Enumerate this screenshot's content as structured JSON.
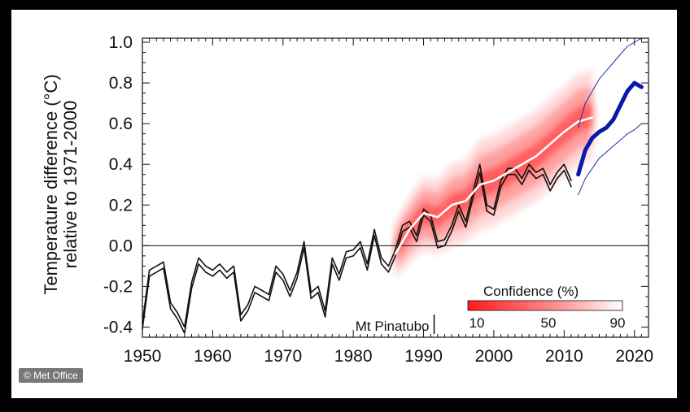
{
  "credit": "© Met Office",
  "colors": {
    "forecast_band": "#ff2a2a",
    "observed": "#111111",
    "hindcast_mean": "#ffffff",
    "decadal_forecast": "#0a1aa8"
  },
  "chart_data": {
    "type": "line",
    "title": "",
    "xlabel": "",
    "ylabel_line1": "Temperature difference (°C)",
    "ylabel_line2": "relative to 1971-2000",
    "xlim": [
      1950,
      2022
    ],
    "ylim": [
      -0.45,
      1.02
    ],
    "x_ticks": [
      1950,
      1960,
      1970,
      1980,
      1990,
      2000,
      2010,
      2020
    ],
    "x_tick_labels": [
      "1950",
      "1960",
      "1970",
      "1980",
      "1990",
      "2000",
      "2010",
      "2020"
    ],
    "y_ticks": [
      -0.4,
      -0.2,
      0.0,
      0.2,
      0.4,
      0.6,
      0.8,
      1.0
    ],
    "y_tick_labels": [
      "-0.4",
      "-0.2",
      "0.0",
      "0.2",
      "0.4",
      "0.6",
      "0.8",
      "1.0"
    ],
    "zero_line": 0.0,
    "annotation": {
      "text": "Mt Pinatubo",
      "x": 1991.5
    },
    "legend": {
      "title": "Confidence (%)",
      "labels": [
        "10",
        "50",
        "90"
      ],
      "position": "bottom-right"
    },
    "series": [
      {
        "name": "Observations 1",
        "color": "#111111",
        "points": [
          [
            1950,
            -0.38
          ],
          [
            1951,
            -0.12
          ],
          [
            1952,
            -0.1
          ],
          [
            1953,
            -0.08
          ],
          [
            1954,
            -0.28
          ],
          [
            1955,
            -0.33
          ],
          [
            1956,
            -0.4
          ],
          [
            1957,
            -0.18
          ],
          [
            1958,
            -0.06
          ],
          [
            1959,
            -0.1
          ],
          [
            1960,
            -0.12
          ],
          [
            1961,
            -0.09
          ],
          [
            1962,
            -0.13
          ],
          [
            1963,
            -0.1
          ],
          [
            1964,
            -0.34
          ],
          [
            1965,
            -0.29
          ],
          [
            1966,
            -0.2
          ],
          [
            1967,
            -0.22
          ],
          [
            1968,
            -0.24
          ],
          [
            1969,
            -0.1
          ],
          [
            1970,
            -0.14
          ],
          [
            1971,
            -0.22
          ],
          [
            1972,
            -0.13
          ],
          [
            1973,
            0.02
          ],
          [
            1974,
            -0.23
          ],
          [
            1975,
            -0.2
          ],
          [
            1976,
            -0.32
          ],
          [
            1977,
            -0.06
          ],
          [
            1978,
            -0.14
          ],
          [
            1979,
            -0.03
          ],
          [
            1980,
            -0.02
          ],
          [
            1981,
            0.02
          ],
          [
            1982,
            -0.09
          ],
          [
            1983,
            0.08
          ],
          [
            1984,
            -0.06
          ],
          [
            1985,
            -0.1
          ],
          [
            1986,
            -0.02
          ],
          [
            1987,
            0.1
          ],
          [
            1988,
            0.12
          ],
          [
            1989,
            0.05
          ],
          [
            1990,
            0.18
          ],
          [
            1991,
            0.15
          ],
          [
            1992,
            0.02
          ],
          [
            1993,
            0.03
          ],
          [
            1994,
            0.1
          ],
          [
            1995,
            0.2
          ],
          [
            1996,
            0.12
          ],
          [
            1997,
            0.26
          ],
          [
            1998,
            0.4
          ],
          [
            1999,
            0.2
          ],
          [
            2000,
            0.18
          ],
          [
            2001,
            0.32
          ],
          [
            2002,
            0.38
          ],
          [
            2003,
            0.38
          ],
          [
            2004,
            0.33
          ],
          [
            2005,
            0.4
          ],
          [
            2006,
            0.36
          ],
          [
            2007,
            0.38
          ],
          [
            2008,
            0.3
          ],
          [
            2009,
            0.36
          ],
          [
            2010,
            0.4
          ],
          [
            2011,
            0.32
          ]
        ]
      },
      {
        "name": "Observations 2",
        "color": "#111111",
        "points": [
          [
            1950,
            -0.41
          ],
          [
            1951,
            -0.15
          ],
          [
            1952,
            -0.13
          ],
          [
            1953,
            -0.11
          ],
          [
            1954,
            -0.31
          ],
          [
            1955,
            -0.36
          ],
          [
            1956,
            -0.43
          ],
          [
            1957,
            -0.21
          ],
          [
            1958,
            -0.09
          ],
          [
            1959,
            -0.13
          ],
          [
            1960,
            -0.15
          ],
          [
            1961,
            -0.12
          ],
          [
            1962,
            -0.16
          ],
          [
            1963,
            -0.13
          ],
          [
            1964,
            -0.37
          ],
          [
            1965,
            -0.32
          ],
          [
            1966,
            -0.23
          ],
          [
            1967,
            -0.25
          ],
          [
            1968,
            -0.27
          ],
          [
            1969,
            -0.13
          ],
          [
            1970,
            -0.17
          ],
          [
            1971,
            -0.25
          ],
          [
            1972,
            -0.16
          ],
          [
            1973,
            -0.01
          ],
          [
            1974,
            -0.26
          ],
          [
            1975,
            -0.23
          ],
          [
            1976,
            -0.35
          ],
          [
            1977,
            -0.09
          ],
          [
            1978,
            -0.17
          ],
          [
            1979,
            -0.06
          ],
          [
            1980,
            -0.05
          ],
          [
            1981,
            -0.01
          ],
          [
            1982,
            -0.12
          ],
          [
            1983,
            0.05
          ],
          [
            1984,
            -0.09
          ],
          [
            1985,
            -0.13
          ],
          [
            1986,
            -0.05
          ],
          [
            1987,
            0.07
          ],
          [
            1988,
            0.09
          ],
          [
            1989,
            0.02
          ],
          [
            1990,
            0.15
          ],
          [
            1991,
            0.12
          ],
          [
            1992,
            -0.01
          ],
          [
            1993,
            0.0
          ],
          [
            1994,
            0.07
          ],
          [
            1995,
            0.17
          ],
          [
            1996,
            0.09
          ],
          [
            1997,
            0.23
          ],
          [
            1998,
            0.36
          ],
          [
            1999,
            0.17
          ],
          [
            2000,
            0.15
          ],
          [
            2001,
            0.29
          ],
          [
            2002,
            0.35
          ],
          [
            2003,
            0.35
          ],
          [
            2004,
            0.3
          ],
          [
            2005,
            0.37
          ],
          [
            2006,
            0.33
          ],
          [
            2007,
            0.35
          ],
          [
            2008,
            0.27
          ],
          [
            2009,
            0.33
          ],
          [
            2010,
            0.37
          ],
          [
            2011,
            0.29
          ]
        ]
      },
      {
        "name": "Hindcast central estimate",
        "color": "#ffffff",
        "points": [
          [
            1986,
            -0.04
          ],
          [
            1988,
            0.08
          ],
          [
            1990,
            0.16
          ],
          [
            1992,
            0.14
          ],
          [
            1994,
            0.2
          ],
          [
            1996,
            0.22
          ],
          [
            1998,
            0.3
          ],
          [
            2000,
            0.32
          ],
          [
            2002,
            0.36
          ],
          [
            2004,
            0.4
          ],
          [
            2006,
            0.44
          ],
          [
            2008,
            0.5
          ],
          [
            2010,
            0.56
          ],
          [
            2012,
            0.61
          ],
          [
            2014,
            0.63
          ]
        ]
      },
      {
        "name": "Forecast upper",
        "color": "#2030a0",
        "points": [
          [
            2012,
            0.58
          ],
          [
            2013,
            0.7
          ],
          [
            2014,
            0.76
          ],
          [
            2015,
            0.82
          ],
          [
            2016,
            0.86
          ],
          [
            2017,
            0.9
          ],
          [
            2018,
            0.94
          ],
          [
            2019,
            0.98
          ],
          [
            2020,
            1.0
          ],
          [
            2021,
            1.02
          ]
        ]
      },
      {
        "name": "Forecast lower",
        "color": "#2030a0",
        "points": [
          [
            2012,
            0.25
          ],
          [
            2013,
            0.33
          ],
          [
            2014,
            0.38
          ],
          [
            2015,
            0.43
          ],
          [
            2016,
            0.46
          ],
          [
            2017,
            0.49
          ],
          [
            2018,
            0.52
          ],
          [
            2019,
            0.55
          ],
          [
            2020,
            0.57
          ],
          [
            2021,
            0.6
          ]
        ]
      },
      {
        "name": "Decadal forecast",
        "color": "#0a1aa8",
        "points": [
          [
            2012,
            0.35
          ],
          [
            2013,
            0.47
          ],
          [
            2014,
            0.53
          ],
          [
            2015,
            0.56
          ],
          [
            2016,
            0.58
          ],
          [
            2017,
            0.62
          ],
          [
            2018,
            0.69
          ],
          [
            2019,
            0.76
          ],
          [
            2020,
            0.8
          ],
          [
            2021,
            0.78
          ]
        ]
      }
    ],
    "confidence_band": {
      "name": "Hindcast confidence range",
      "x": [
        1986,
        1988,
        1990,
        1992,
        1994,
        1996,
        1998,
        2000,
        2002,
        2004,
        2006,
        2008,
        2010,
        2012,
        2014
      ],
      "lower": [
        -0.16,
        -0.08,
        -0.02,
        -0.04,
        0.0,
        0.02,
        0.08,
        0.1,
        0.14,
        0.18,
        0.22,
        0.28,
        0.34,
        0.4,
        0.43
      ],
      "upper": [
        0.12,
        0.24,
        0.34,
        0.32,
        0.4,
        0.42,
        0.52,
        0.54,
        0.58,
        0.62,
        0.66,
        0.72,
        0.78,
        0.84,
        0.86
      ]
    }
  }
}
